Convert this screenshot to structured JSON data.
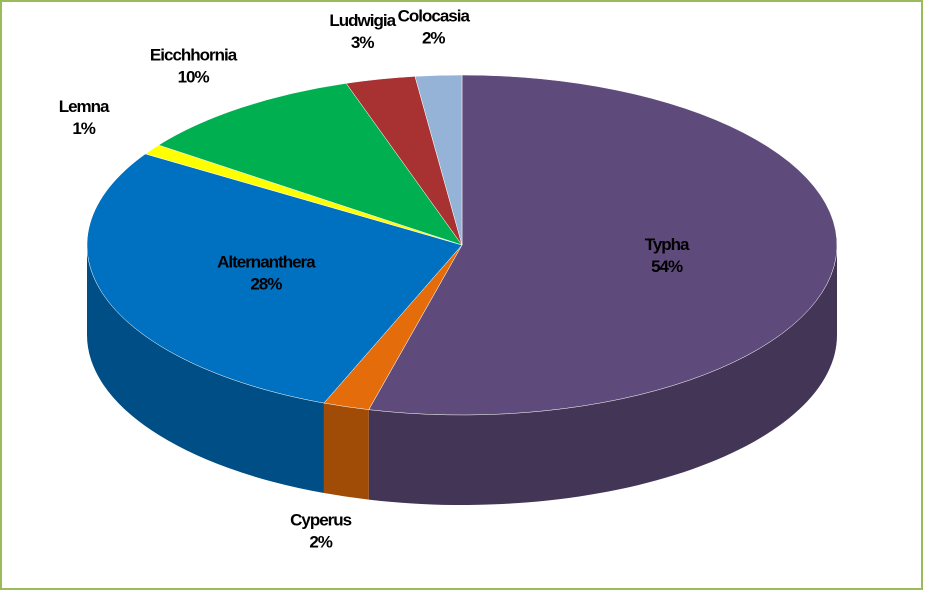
{
  "chart_data": {
    "type": "pie3d",
    "categories": [
      "Typha",
      "Cyperus",
      "Alternanthera",
      "Lemna",
      "Eicchhornia",
      "Ludwigia",
      "Colocasia"
    ],
    "values": [
      54,
      2,
      28,
      1,
      10,
      3,
      2
    ],
    "value_labels": [
      "54%",
      "2%",
      "28%",
      "1%",
      "10%",
      "3%",
      "2%"
    ],
    "colors": [
      "#5f4b7b",
      "#e46c0a",
      "#0070c0",
      "#ffff00",
      "#00b050",
      "#a83232",
      "#95b3d7"
    ]
  }
}
